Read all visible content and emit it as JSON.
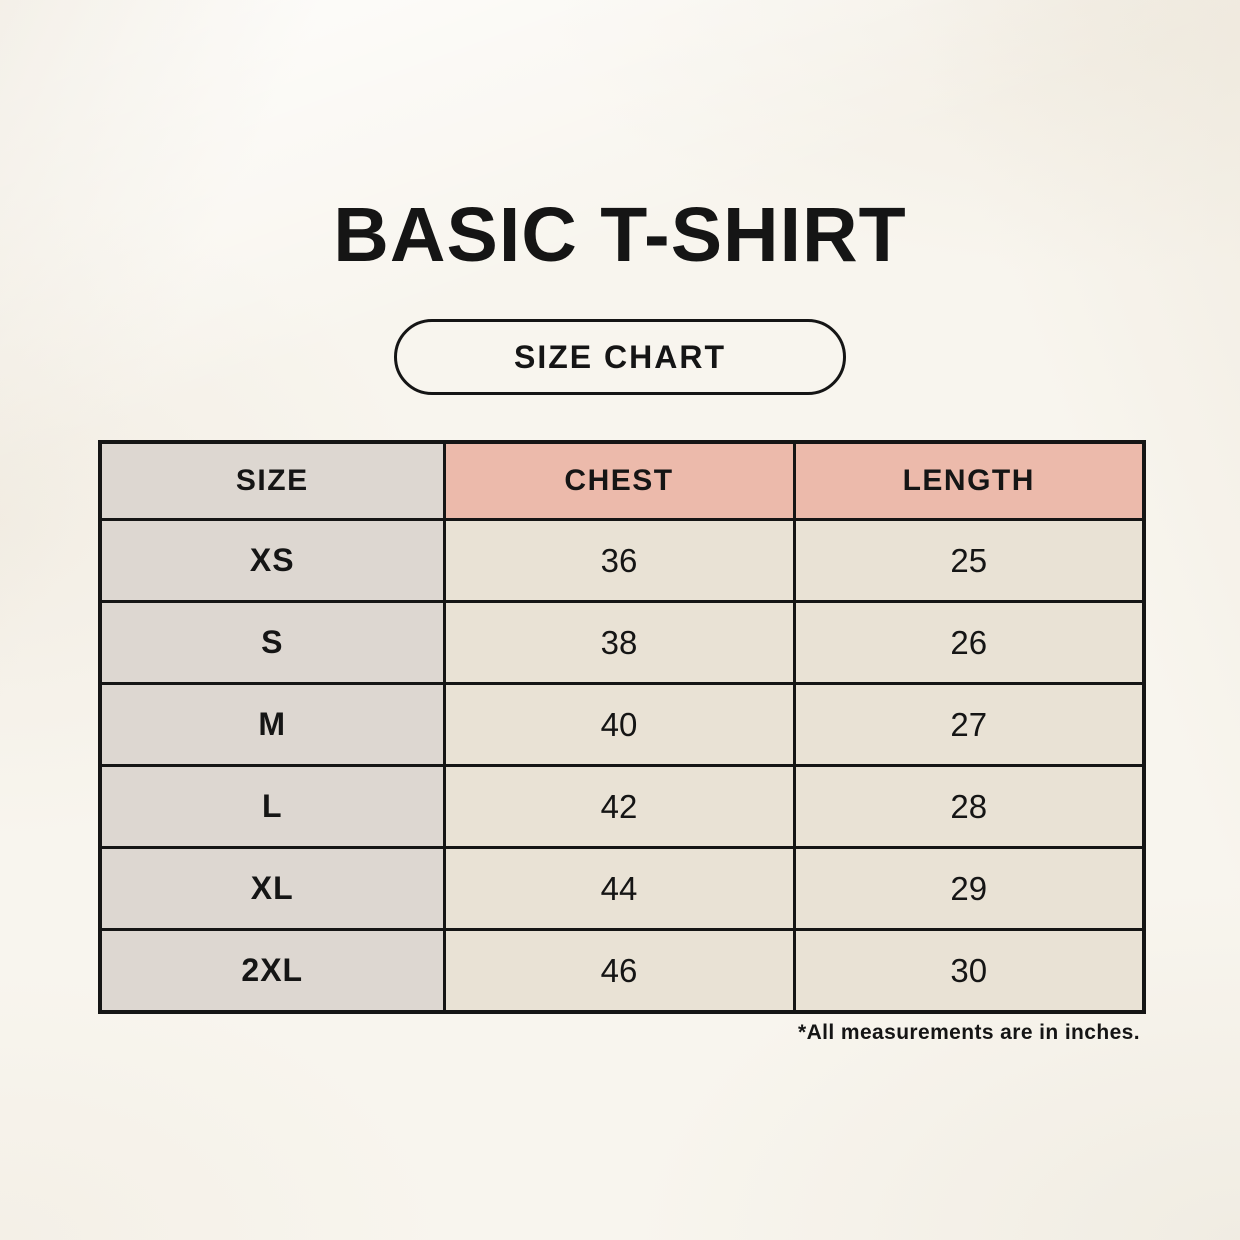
{
  "header": {
    "title": "BASIC T-SHIRT",
    "badge_label": "SIZE CHART"
  },
  "chart_data": {
    "type": "table",
    "title": "BASIC T-SHIRT",
    "subtitle": "SIZE CHART",
    "columns": [
      "SIZE",
      "CHEST",
      "LENGTH"
    ],
    "rows": [
      [
        "XS",
        36,
        25
      ],
      [
        "S",
        38,
        26
      ],
      [
        "M",
        40,
        27
      ],
      [
        "L",
        42,
        28
      ],
      [
        "XL",
        44,
        29
      ],
      [
        "2XL",
        46,
        30
      ]
    ],
    "units": "inches",
    "footnote": "*All measurements are in inches.",
    "layout_hints": {
      "size_column_bg": "#ddd7d1",
      "measurement_header_bg": "#ecbaab",
      "value_cell_bg": "#e9e2d5",
      "border_color": "#151515",
      "background_color": "#f8f5ee",
      "grid": "on"
    }
  },
  "footnote": {
    "text": "*All measurements are in inches."
  }
}
